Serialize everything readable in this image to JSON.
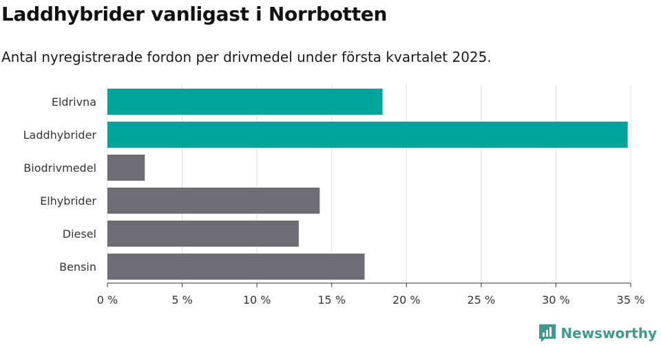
{
  "header": {
    "title": "Laddhybrider vanligast i Norrbotten",
    "subtitle": "Antal nyregistrerade fordon per drivmedel under första kvartalet 2025."
  },
  "brand": {
    "name": "Newsworthy",
    "color": "#3f9a8e",
    "icon": "newsworthy-logo-icon"
  },
  "chart_data": {
    "type": "bar",
    "orientation": "horizontal",
    "categories": [
      "Eldrivna",
      "Laddhybrider",
      "Biodrivmedel",
      "Elhybrider",
      "Diesel",
      "Bensin"
    ],
    "values": [
      18.4,
      34.8,
      2.5,
      14.2,
      12.8,
      17.2
    ],
    "highlight_color": "#00a49a",
    "default_color": "#6e6d73",
    "highlighted": [
      "Eldrivna",
      "Laddhybrider"
    ],
    "xlim": [
      0,
      35
    ],
    "x_ticks": [
      0,
      5,
      10,
      15,
      20,
      25,
      30,
      35
    ],
    "tick_format": "{v} %",
    "grid": true,
    "title": "Laddhybrider vanligast i Norrbotten",
    "xlabel": "",
    "ylabel": ""
  }
}
